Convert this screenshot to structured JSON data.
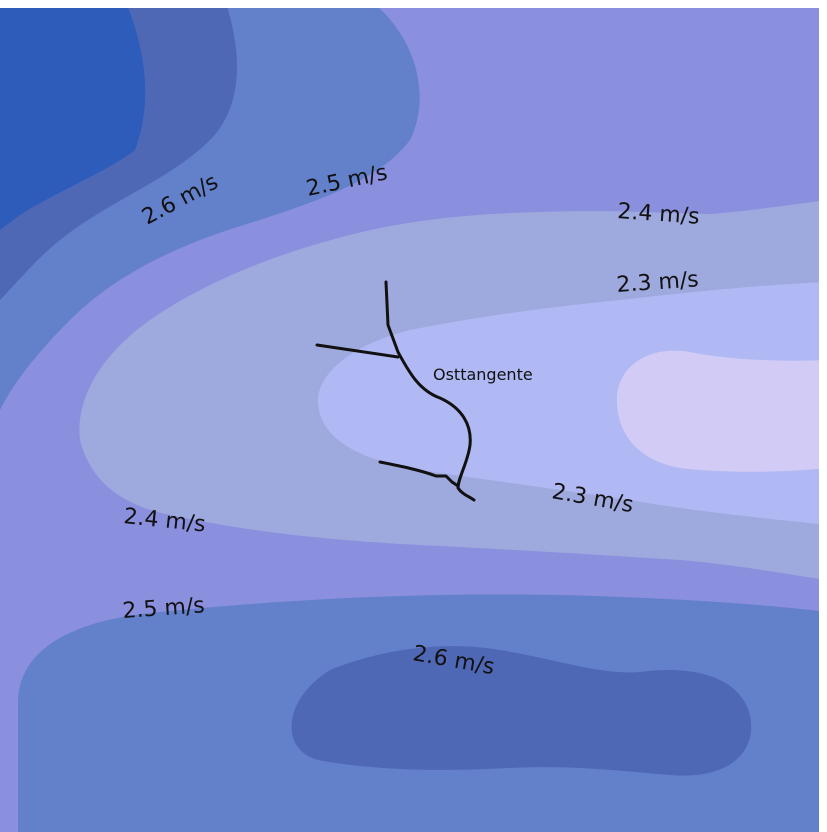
{
  "map": {
    "road_label": "Osttangente",
    "contour_labels": {
      "tl_26": "2.6 m/s",
      "tl_25": "2.5 m/s",
      "r_24": "2.4 m/s",
      "r_23": "2.3 m/s",
      "c_23": "2.3 m/s",
      "l_24": "2.4 m/s",
      "l_25": "2.5 m/s",
      "b_26": "2.6 m/s"
    },
    "colors": {
      "band_26_plus": "#2d5cba",
      "band_26": "#4f68b6",
      "band_25": "#6380cb",
      "band_24": "#8a8fde",
      "band_23": "#9ea9de",
      "band_22": "#b0b9f3",
      "band_21": "#d1cbf6",
      "road": "#111111"
    }
  }
}
